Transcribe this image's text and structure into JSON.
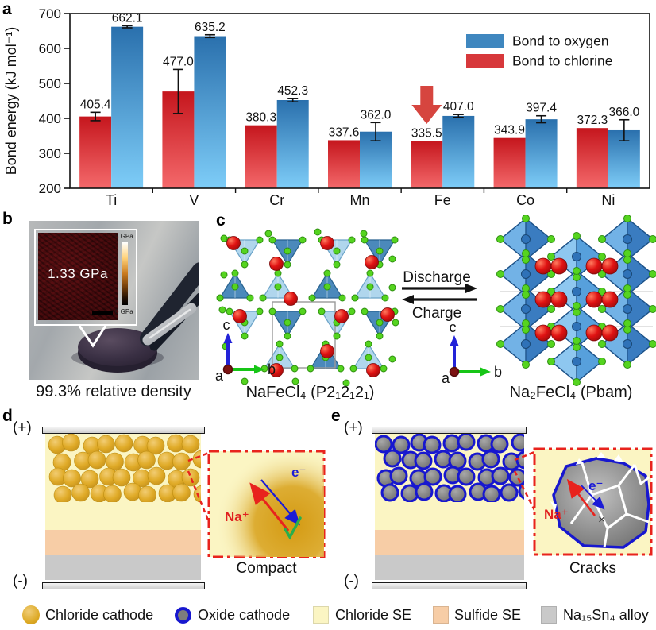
{
  "panels": {
    "a": {
      "label": "a"
    },
    "b": {
      "label": "b",
      "inset_value": "1.33 GPa",
      "colorbar_max": "5 GPa",
      "colorbar_min": "0 GPa",
      "caption": "99.3% relative density"
    },
    "c": {
      "label": "c",
      "discharge_label": "Discharge",
      "charge_label": "Charge",
      "left_formula": "NaFeCl₄ (P2₁2₁2₁)",
      "right_formula": "Na₂FeCl₄ (Pbam)",
      "axis_a": "a",
      "axis_b": "b",
      "axis_c": "c"
    },
    "d": {
      "label": "d",
      "positive": "(+)",
      "negative": "(-)",
      "na_label": "Na⁺",
      "e_label": "e⁻",
      "check": "✓",
      "caption": "Compact"
    },
    "e": {
      "label": "e",
      "positive": "(+)",
      "negative": "(-)",
      "na_label": "Na⁺",
      "e_label": "e⁻",
      "cross": "×",
      "caption": "Cracks"
    }
  },
  "chart_data": {
    "type": "bar",
    "title": "",
    "xlabel": "",
    "ylabel": "Bond energy (kJ mol⁻¹)",
    "ylim": [
      200,
      700
    ],
    "yticks": [
      200,
      300,
      400,
      500,
      600,
      700
    ],
    "grid": false,
    "legend_position": "top-right",
    "categories": [
      "Ti",
      "V",
      "Cr",
      "Mn",
      "Fe",
      "Co",
      "Ni"
    ],
    "series": [
      {
        "name": "Bond to chlorine",
        "values": [
          405.4,
          477.0,
          380.3,
          337.6,
          335.5,
          343.9,
          372.3
        ],
        "errors": [
          12,
          63,
          0,
          0,
          0,
          0,
          0
        ],
        "gradient": [
          "#c5161d",
          "#f4696b"
        ],
        "legend_color": "#d7383b"
      },
      {
        "name": "Bond to oxygen",
        "values": [
          662.1,
          635.2,
          452.3,
          362.0,
          407.0,
          397.4,
          366.0
        ],
        "errors": [
          3,
          4,
          5,
          26,
          4,
          10,
          30
        ],
        "gradient": [
          "#2a70ad",
          "#7ecdf8"
        ],
        "legend_color": "#3f87bf"
      }
    ],
    "legend_order": [
      "Bond to oxygen",
      "Bond to chlorine"
    ],
    "annotation": {
      "type": "down-arrow",
      "category": "Fe",
      "color": "#d6453f"
    }
  },
  "legend_bottom": {
    "items": [
      {
        "icon": "chloride-cathode-icon",
        "label": "Chloride cathode"
      },
      {
        "icon": "oxide-cathode-icon",
        "label": "Oxide cathode"
      },
      {
        "icon": "chloride-se-icon",
        "label": "Chloride SE"
      },
      {
        "icon": "sulfide-se-icon",
        "label": "Sulfide SE"
      },
      {
        "icon": "alloy-icon",
        "label": "Na₁₅Sn₄ alloy"
      }
    ]
  },
  "colors": {
    "bar_chlorine_top": "#c5161d",
    "bar_chlorine_bottom": "#f4696b",
    "bar_oxygen_top": "#2a70ad",
    "bar_oxygen_bottom": "#7ecdf8",
    "legend_oxygen": "#3f87bf",
    "legend_chlorine": "#d7383b",
    "arrow_red": "#d6453f",
    "chloride_cathode": "#dca822",
    "oxide_cathode_fill": "#7d7d7d",
    "oxide_ring": "#1717cf",
    "chloride_se": "#fbf5c3",
    "sulfide_se": "#f7cda6",
    "alloy": "#c9c9c9",
    "inset_border": "#e8231d",
    "na_label_color": "#e02020",
    "e_label_color": "#1b1bd6",
    "check_green": "#27ae4e"
  }
}
